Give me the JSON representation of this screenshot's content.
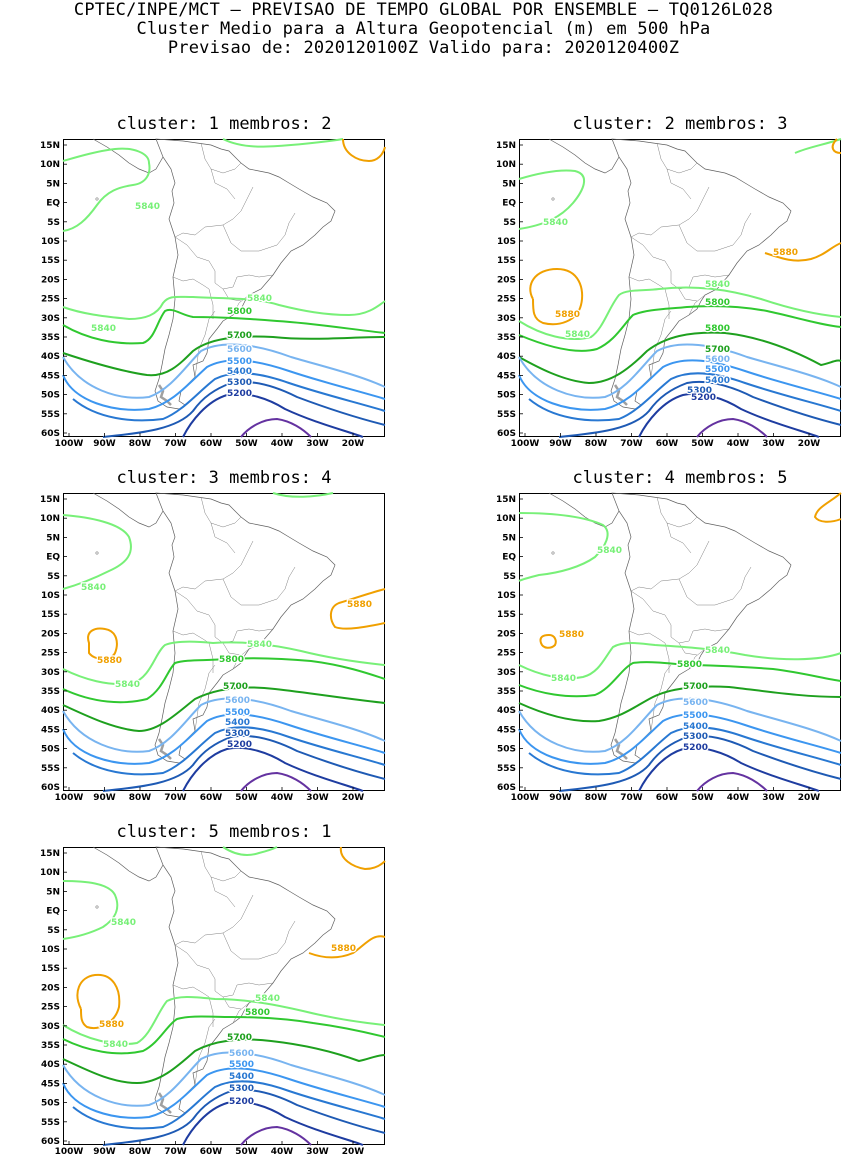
{
  "header": {
    "line1": "CPTEC/INPE/MCT – PREVISAO DE TEMPO GLOBAL POR ENSEMBLE – TQ0126L028",
    "line2": "Cluster Medio para a Altura Geopotencial (m) em 500 hPa",
    "line3": "Previsao de: 2020120100Z   Valido para: 2020120400Z"
  },
  "axes": {
    "lat_labels": [
      "15N",
      "10N",
      "5N",
      "EQ",
      "5S",
      "10S",
      "15S",
      "20S",
      "25S",
      "30S",
      "35S",
      "40S",
      "45S",
      "50S",
      "55S",
      "60S"
    ],
    "lon_labels": [
      "100W",
      "90W",
      "80W",
      "70W",
      "60W",
      "50W",
      "40W",
      "30W",
      "20W"
    ]
  },
  "contour_colors": {
    "5880": "#f0a000",
    "5840": "#78f078",
    "5800": "#30c830",
    "5700": "#1ea01e",
    "5600": "#78b4f0",
    "5500": "#3c96f0",
    "5400": "#2878d2",
    "5300": "#1e5ab4",
    "5200": "#1e3ca0",
    "5100": "#6432a0",
    "coast": "#a0a0a0"
  },
  "panels": [
    {
      "title": "cluster: 1   membros: 2",
      "labels": [
        "5840",
        "5840",
        "5840",
        "5800",
        "5700",
        "5600",
        "5500",
        "5400",
        "5300",
        "5200"
      ]
    },
    {
      "title": "cluster: 2   membros: 3",
      "labels": [
        "5840",
        "5880",
        "5880",
        "5840",
        "5840",
        "5800",
        "5800",
        "5700",
        "5600",
        "5500",
        "5400",
        "5300",
        "5200"
      ]
    },
    {
      "title": "cluster: 3   membros: 4",
      "labels": [
        "5840",
        "5880",
        "5880",
        "5840",
        "5840",
        "5800",
        "5700",
        "5600",
        "5500",
        "5400",
        "5300",
        "5200"
      ]
    },
    {
      "title": "cluster: 4   membros: 5",
      "labels": [
        "5840",
        "5880",
        "5840",
        "5840",
        "5800",
        "5700",
        "5600",
        "5500",
        "5400",
        "5300",
        "5200"
      ]
    },
    {
      "title": "cluster: 5   membros: 1",
      "labels": [
        "5840",
        "5880",
        "5880",
        "5840",
        "5840",
        "5800",
        "5700",
        "5600",
        "5500",
        "5400",
        "5300",
        "5200"
      ]
    }
  ]
}
